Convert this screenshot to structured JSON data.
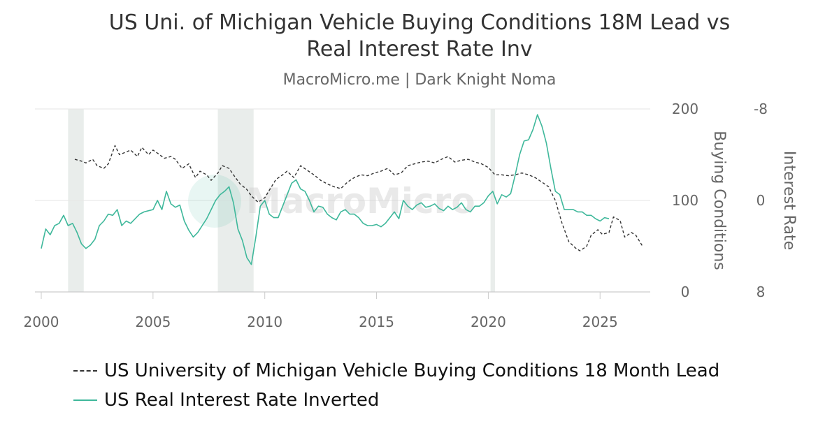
{
  "title_line1": "US Uni. of Michigan Vehicle Buying Conditions 18M Lead vs",
  "title_line2": "Real Interest Rate Inv",
  "subtitle": "MacroMicro.me | Dark Knight Noma",
  "watermark": "MacroMicro",
  "colors": {
    "series_buying": "#333333",
    "series_rate": "#3fb89b",
    "recession": "#e9edeb",
    "grid": "#e6e6e6"
  },
  "legend": [
    {
      "label": "US University of Michigan Vehicle Buying Conditions 18 Month Lead",
      "style": "dashed"
    },
    {
      "label": "US Real Interest Rate Inverted",
      "style": "solid"
    }
  ],
  "chart_data": {
    "type": "line",
    "x_range": [
      2000,
      2026.9
    ],
    "x_ticks": [
      "2000",
      "2005",
      "2010",
      "2015",
      "2020",
      "2025"
    ],
    "y_left": {
      "label": "Buying Conditions",
      "range": [
        0,
        200
      ],
      "ticks": [
        "0",
        "100",
        "200"
      ]
    },
    "y_right": {
      "label": "Interest Rate",
      "range": [
        8,
        -8
      ],
      "ticks": [
        "8",
        "0",
        "-8"
      ]
    },
    "recessions": [
      [
        2001.2,
        2001.9
      ],
      [
        2007.9,
        2009.5
      ],
      [
        2020.1,
        2020.3
      ]
    ],
    "series": [
      {
        "name": "US University of Michigan Vehicle Buying Conditions 18 Month Lead",
        "axis": "left",
        "x": [
          2001.5,
          2001.8,
          2002.0,
          2002.3,
          2002.5,
          2002.8,
          2003.0,
          2003.3,
          2003.5,
          2003.8,
          2004.0,
          2004.3,
          2004.5,
          2004.8,
          2005.0,
          2005.3,
          2005.5,
          2005.8,
          2006.0,
          2006.3,
          2006.6,
          2006.9,
          2007.1,
          2007.4,
          2007.6,
          2007.9,
          2008.1,
          2008.4,
          2008.6,
          2008.9,
          2009.2,
          2009.4,
          2009.7,
          2010.0,
          2010.3,
          2010.5,
          2010.8,
          2011.0,
          2011.3,
          2011.6,
          2011.9,
          2012.2,
          2012.5,
          2012.8,
          2013.1,
          2013.4,
          2013.7,
          2014.0,
          2014.3,
          2014.6,
          2014.9,
          2015.2,
          2015.5,
          2015.8,
          2016.1,
          2016.4,
          2016.7,
          2017.0,
          2017.3,
          2017.6,
          2017.9,
          2018.2,
          2018.5,
          2018.8,
          2019.1,
          2019.4,
          2019.7,
          2020.0,
          2020.3,
          2020.6,
          2020.9,
          2021.2,
          2021.5,
          2021.8,
          2022.1,
          2022.4,
          2022.7,
          2023.0,
          2023.3,
          2023.6,
          2023.9,
          2024.1,
          2024.4,
          2024.6,
          2024.9,
          2025.1,
          2025.4,
          2025.6,
          2025.9,
          2026.1,
          2026.4,
          2026.6,
          2026.9
        ],
        "y": [
          145,
          143,
          141,
          145,
          138,
          135,
          140,
          160,
          150,
          153,
          155,
          148,
          158,
          150,
          155,
          150,
          146,
          148,
          145,
          135,
          140,
          125,
          132,
          128,
          122,
          130,
          138,
          135,
          128,
          118,
          112,
          105,
          98,
          103,
          115,
          123,
          128,
          132,
          125,
          138,
          133,
          128,
          122,
          118,
          115,
          113,
          120,
          125,
          128,
          127,
          130,
          132,
          135,
          128,
          130,
          138,
          140,
          142,
          143,
          141,
          145,
          148,
          142,
          144,
          145,
          142,
          140,
          136,
          128,
          128,
          127,
          128,
          130,
          128,
          125,
          120,
          115,
          100,
          75,
          55,
          48,
          45,
          50,
          62,
          68,
          63,
          65,
          82,
          78,
          60,
          65,
          62,
          50
        ]
      },
      {
        "name": "US Real Interest Rate Inverted",
        "axis": "right",
        "x": [
          2000.0,
          2000.2,
          2000.4,
          2000.6,
          2000.8,
          2001.0,
          2001.2,
          2001.4,
          2001.6,
          2001.8,
          2002.0,
          2002.2,
          2002.4,
          2002.6,
          2002.8,
          2003.0,
          2003.2,
          2003.4,
          2003.6,
          2003.8,
          2004.0,
          2004.2,
          2004.4,
          2004.6,
          2004.8,
          2005.0,
          2005.2,
          2005.4,
          2005.6,
          2005.8,
          2006.0,
          2006.2,
          2006.4,
          2006.6,
          2006.8,
          2007.0,
          2007.2,
          2007.4,
          2007.6,
          2007.8,
          2008.0,
          2008.2,
          2008.4,
          2008.6,
          2008.8,
          2009.0,
          2009.2,
          2009.4,
          2009.6,
          2009.8,
          2010.0,
          2010.2,
          2010.4,
          2010.6,
          2010.8,
          2011.0,
          2011.2,
          2011.4,
          2011.6,
          2011.8,
          2012.0,
          2012.2,
          2012.4,
          2012.6,
          2012.8,
          2013.0,
          2013.2,
          2013.4,
          2013.6,
          2013.8,
          2014.0,
          2014.2,
          2014.4,
          2014.6,
          2014.8,
          2015.0,
          2015.2,
          2015.4,
          2015.6,
          2015.8,
          2016.0,
          2016.2,
          2016.4,
          2016.6,
          2016.8,
          2017.0,
          2017.2,
          2017.4,
          2017.6,
          2017.8,
          2018.0,
          2018.2,
          2018.4,
          2018.6,
          2018.8,
          2019.0,
          2019.2,
          2019.4,
          2019.6,
          2019.8,
          2020.0,
          2020.2,
          2020.4,
          2020.6,
          2020.8,
          2021.0,
          2021.2,
          2021.4,
          2021.6,
          2021.8,
          2022.0,
          2022.2,
          2022.4,
          2022.6,
          2022.8,
          2023.0,
          2023.2,
          2023.4,
          2023.6,
          2023.8,
          2024.0,
          2024.2,
          2024.4,
          2024.6,
          2024.8,
          2025.0,
          2025.2,
          2025.4
        ],
        "y": [
          4.2,
          2.5,
          3.0,
          2.2,
          2.0,
          1.3,
          2.2,
          2.0,
          2.8,
          3.8,
          4.2,
          3.9,
          3.4,
          2.2,
          1.8,
          1.2,
          1.3,
          0.8,
          2.2,
          1.8,
          2.0,
          1.6,
          1.2,
          1.0,
          0.9,
          0.8,
          0.0,
          0.8,
          -0.8,
          0.3,
          0.6,
          0.4,
          1.8,
          2.6,
          3.2,
          2.8,
          2.2,
          1.6,
          0.8,
          0.0,
          -0.5,
          -0.8,
          -1.2,
          0.2,
          2.5,
          3.5,
          5.0,
          5.6,
          3.2,
          0.5,
          0.0,
          1.2,
          1.5,
          1.5,
          0.5,
          -0.5,
          -1.5,
          -1.8,
          -1.0,
          -0.8,
          0.0,
          1.0,
          0.5,
          0.6,
          1.2,
          1.5,
          1.7,
          1.0,
          0.8,
          1.2,
          1.2,
          1.5,
          2.0,
          2.2,
          2.2,
          2.1,
          2.3,
          2.0,
          1.5,
          1.0,
          1.6,
          0.0,
          0.5,
          0.8,
          0.4,
          0.2,
          0.6,
          0.5,
          0.3,
          0.7,
          0.9,
          0.5,
          0.8,
          0.6,
          0.2,
          0.8,
          1.0,
          0.5,
          0.5,
          0.2,
          -0.4,
          -0.8,
          0.3,
          -0.5,
          -0.3,
          -0.6,
          -2.2,
          -4.0,
          -5.2,
          -5.3,
          -6.2,
          -7.5,
          -6.5,
          -5.0,
          -2.8,
          -0.8,
          -0.5,
          0.8,
          0.8,
          0.8,
          1.0,
          1.0,
          1.3,
          1.3,
          1.6,
          1.8,
          1.5,
          1.6
        ]
      }
    ]
  }
}
